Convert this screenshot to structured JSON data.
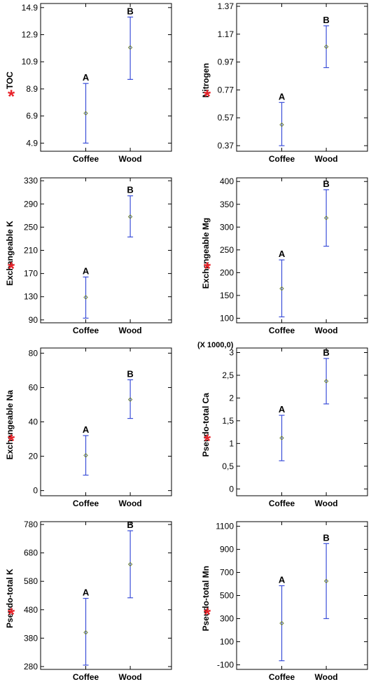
{
  "colors": {
    "error_bar": "#3b4fd8",
    "mean_marker": "#6a7f2a",
    "asterisk": "#e8232a",
    "axis": "#000000"
  },
  "chart_data": [
    {
      "type": "scatter",
      "subtype": "means-with-intervals",
      "ylabel": "TOC",
      "significant_mark": "*",
      "multiplier": "",
      "categories": [
        "Coffee",
        "Wood"
      ],
      "ylim": [
        4.3,
        15.2
      ],
      "yticks": [
        4.9,
        6.9,
        8.9,
        10.9,
        12.9,
        14.9
      ],
      "ytick_labels": [
        "4.9",
        "6.9",
        "8.9",
        "10.9",
        "12.9",
        "14.9"
      ],
      "means": [
        7.1,
        11.95
      ],
      "lower": [
        4.9,
        9.6
      ],
      "upper": [
        9.3,
        14.2
      ],
      "letters": [
        "A",
        "B"
      ]
    },
    {
      "type": "scatter",
      "subtype": "means-with-intervals",
      "ylabel": "Nitrogen",
      "significant_mark": "*",
      "multiplier": "",
      "categories": [
        "Coffee",
        "Wood"
      ],
      "ylim": [
        0.33,
        1.39
      ],
      "yticks": [
        0.37,
        0.57,
        0.77,
        0.97,
        1.17,
        1.37
      ],
      "ytick_labels": [
        "0.37",
        "0.57",
        "0.77",
        "0.97",
        "1.17",
        "1.37"
      ],
      "means": [
        0.52,
        1.08
      ],
      "lower": [
        0.37,
        0.93
      ],
      "upper": [
        0.68,
        1.23
      ],
      "letters": [
        "A",
        "B"
      ]
    },
    {
      "type": "scatter",
      "subtype": "means-with-intervals",
      "ylabel": "Exchangeable K",
      "significant_mark": "*",
      "multiplier": "",
      "categories": [
        "Coffee",
        "Wood"
      ],
      "ylim": [
        85,
        335
      ],
      "yticks": [
        90,
        130,
        170,
        210,
        250,
        290,
        330
      ],
      "ytick_labels": [
        "90",
        "130",
        "170",
        "210",
        "250",
        "290",
        "330"
      ],
      "means": [
        129,
        268
      ],
      "lower": [
        93,
        233
      ],
      "upper": [
        164,
        304
      ],
      "letters": [
        "A",
        "B"
      ]
    },
    {
      "type": "scatter",
      "subtype": "means-with-intervals",
      "ylabel": "Exchangeable Mg",
      "significant_mark": "*",
      "multiplier": "",
      "categories": [
        "Coffee",
        "Wood"
      ],
      "ylim": [
        90,
        408
      ],
      "yticks": [
        100,
        150,
        200,
        250,
        300,
        350,
        400
      ],
      "ytick_labels": [
        "100",
        "150",
        "200",
        "250",
        "300",
        "350",
        "400"
      ],
      "means": [
        165,
        320
      ],
      "lower": [
        103,
        258
      ],
      "upper": [
        228,
        382
      ],
      "letters": [
        "A",
        "B"
      ]
    },
    {
      "type": "scatter",
      "subtype": "means-with-intervals",
      "ylabel": "Exchangeable Na",
      "significant_mark": "*",
      "multiplier": "",
      "categories": [
        "Coffee",
        "Wood"
      ],
      "ylim": [
        -3,
        83
      ],
      "yticks": [
        0,
        20,
        40,
        60,
        80
      ],
      "ytick_labels": [
        "0",
        "20",
        "40",
        "60",
        "80"
      ],
      "means": [
        20.5,
        53
      ],
      "lower": [
        9,
        42
      ],
      "upper": [
        32,
        64.5
      ],
      "letters": [
        "A",
        "B"
      ]
    },
    {
      "type": "scatter",
      "subtype": "means-with-intervals",
      "ylabel": "Pseudo-total Ca",
      "significant_mark": "*",
      "multiplier": "(X 1000,0)",
      "categories": [
        "Coffee",
        "Wood"
      ],
      "ylim": [
        -0.15,
        3.1
      ],
      "yticks": [
        0,
        0.5,
        1,
        1.5,
        2,
        2.5,
        3
      ],
      "ytick_labels": [
        "0",
        "0,5",
        "1",
        "1,5",
        "2",
        "2,5",
        "3"
      ],
      "means": [
        1.12,
        2.37
      ],
      "lower": [
        0.62,
        1.87
      ],
      "upper": [
        1.62,
        2.87
      ],
      "letters": [
        "A",
        "B"
      ]
    },
    {
      "type": "scatter",
      "subtype": "means-with-intervals",
      "ylabel": "Pseudo-total K",
      "significant_mark": "*",
      "multiplier": "",
      "categories": [
        "Coffee",
        "Wood"
      ],
      "ylim": [
        270,
        790
      ],
      "yticks": [
        280,
        380,
        480,
        580,
        680,
        780
      ],
      "ytick_labels": [
        "280",
        "380",
        "480",
        "580",
        "680",
        "780"
      ],
      "means": [
        400,
        640
      ],
      "lower": [
        285,
        522
      ],
      "upper": [
        520,
        758
      ],
      "letters": [
        "A",
        "B"
      ]
    },
    {
      "type": "scatter",
      "subtype": "means-with-intervals",
      "ylabel": "Pseudo-total Mn",
      "significant_mark": "*",
      "multiplier": "",
      "categories": [
        "Coffee",
        "Wood"
      ],
      "ylim": [
        -140,
        1140
      ],
      "yticks": [
        -100,
        100,
        300,
        500,
        700,
        900,
        1100
      ],
      "ytick_labels": [
        "-100",
        "100",
        "300",
        "500",
        "700",
        "900",
        "1100"
      ],
      "means": [
        260,
        625
      ],
      "lower": [
        -65,
        300
      ],
      "upper": [
        585,
        950
      ],
      "letters": [
        "A",
        "B"
      ]
    }
  ]
}
